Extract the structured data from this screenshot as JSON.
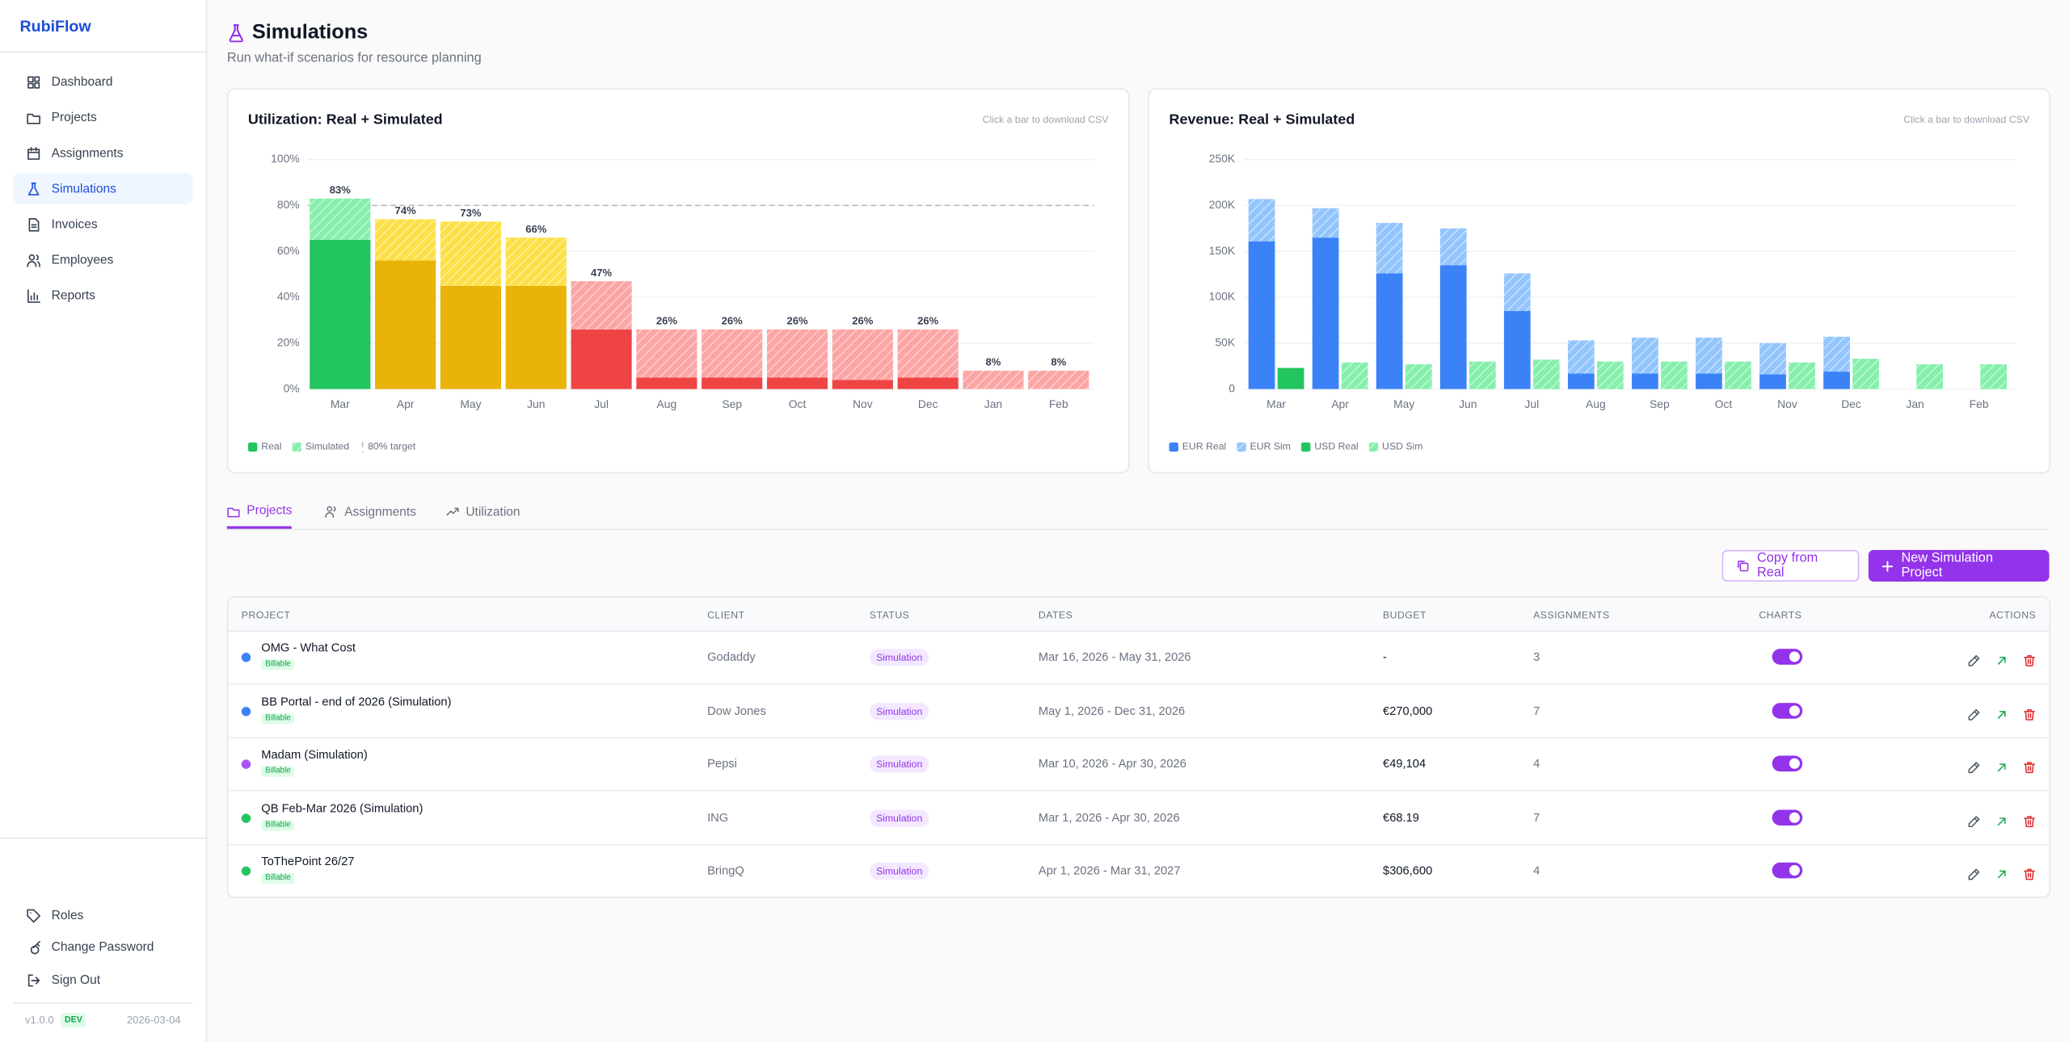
{
  "app": {
    "brand": "RubiFlow"
  },
  "nav": {
    "items": [
      {
        "label": "Dashboard"
      },
      {
        "label": "Projects"
      },
      {
        "label": "Assignments"
      },
      {
        "label": "Simulations",
        "active": true
      },
      {
        "label": "Invoices"
      },
      {
        "label": "Employees"
      },
      {
        "label": "Reports"
      }
    ],
    "bottom_items": [
      {
        "label": "Roles"
      },
      {
        "label": "Change Password"
      },
      {
        "label": "Sign Out"
      }
    ],
    "version": "v1.0.0",
    "env": "DEV",
    "date": "2026-03-04"
  },
  "header": {
    "title": "Simulations",
    "subtitle": "Run what-if scenarios for resource planning"
  },
  "chart_data": [
    {
      "type": "bar",
      "stacked": true,
      "title": "Utilization: Real + Simulated",
      "subtitle": "Click a bar to download CSV",
      "categories": [
        "Mar",
        "Apr",
        "May",
        "Jun",
        "Jul",
        "Aug",
        "Sep",
        "Oct",
        "Nov",
        "Dec",
        "Jan",
        "Feb"
      ],
      "series": [
        {
          "name": "Real",
          "color": "#22c55e",
          "bar_colors": [
            "#22c55e",
            "#eab308",
            "#eab308",
            "#eab308",
            "#ef4444",
            "#ef4444",
            "#ef4444",
            "#ef4444",
            "#ef4444",
            "#ef4444",
            "#ef4444",
            "#ef4444"
          ],
          "values": [
            65,
            56,
            45,
            45,
            26,
            5,
            5,
            5,
            4,
            5,
            0,
            0
          ]
        },
        {
          "name": "Simulated",
          "color": "#86efac",
          "hatched": true,
          "bar_colors": [
            "#86efac",
            "#fde047",
            "#fde047",
            "#fde047",
            "#fca5a5",
            "#fca5a5",
            "#fca5a5",
            "#fca5a5",
            "#fca5a5",
            "#fca5a5",
            "#fca5a5",
            "#fca5a5"
          ],
          "values": [
            18,
            18,
            28,
            21,
            21,
            21,
            21,
            21,
            22,
            21,
            8,
            8
          ]
        }
      ],
      "totals": {
        "values": [
          83,
          74,
          73,
          66,
          47,
          26,
          26,
          26,
          26,
          26,
          8,
          8
        ],
        "value_labels": [
          "83%",
          "74%",
          "73%",
          "66%",
          "47%",
          "26%",
          "26%",
          "26%",
          "26%",
          "26%",
          "8%",
          "8%"
        ]
      },
      "target": {
        "value": 80,
        "label": "80% target"
      },
      "ylim": [
        0,
        100
      ],
      "yticks": [
        {
          "value": 0,
          "label": "0%"
        },
        {
          "value": 20,
          "label": "20%"
        },
        {
          "value": 40,
          "label": "40%"
        },
        {
          "value": 60,
          "label": "60%"
        },
        {
          "value": 80,
          "label": "80%"
        },
        {
          "value": 100,
          "label": "100%"
        }
      ],
      "grid": true
    },
    {
      "type": "bar",
      "stacked": true,
      "title": "Revenue: Real + Simulated",
      "subtitle": "Click a bar to download CSV",
      "categories": [
        "Mar",
        "Apr",
        "May",
        "Jun",
        "Jul",
        "Aug",
        "Sep",
        "Oct",
        "Nov",
        "Dec",
        "Jan",
        "Feb"
      ],
      "series": [
        {
          "name": "EUR Real",
          "color": "#3b82f6",
          "stack": "EUR",
          "values": [
            161000,
            165000,
            126000,
            135000,
            85000,
            17000,
            17000,
            17000,
            16000,
            19000,
            0,
            0
          ]
        },
        {
          "name": "EUR Sim",
          "color": "#93c5fd",
          "stack": "EUR",
          "hatched": true,
          "values": [
            46000,
            32000,
            55000,
            40000,
            41000,
            36000,
            39000,
            39000,
            34000,
            38000,
            0,
            0
          ]
        },
        {
          "name": "USD Real",
          "color": "#22c55e",
          "stack": "USD",
          "values": [
            23000,
            0,
            0,
            0,
            0,
            0,
            0,
            0,
            0,
            0,
            0,
            0
          ]
        },
        {
          "name": "USD Sim",
          "color": "#86efac",
          "stack": "USD",
          "hatched": true,
          "values": [
            0,
            29000,
            27000,
            30000,
            32000,
            30000,
            30000,
            30000,
            29000,
            33000,
            27000,
            27000
          ]
        }
      ],
      "ylim": [
        0,
        250000
      ],
      "yticks": [
        0,
        {
          "value": 50000,
          "label": "50K"
        },
        {
          "value": 100000,
          "label": "100K"
        },
        {
          "value": 150000,
          "label": "150K"
        },
        {
          "value": 200000,
          "label": "200K"
        },
        {
          "value": 250000,
          "label": "250K"
        }
      ],
      "grid": true
    }
  ],
  "tabs": [
    {
      "label": "Projects",
      "active": true
    },
    {
      "label": "Assignments"
    },
    {
      "label": "Utilization"
    }
  ],
  "buttons": {
    "copy": "Copy from Real",
    "new": "New Simulation Project"
  },
  "table": {
    "columns": [
      "PROJECT",
      "CLIENT",
      "STATUS",
      "DATES",
      "BUDGET",
      "ASSIGNMENTS",
      "CHARTS",
      "ACTIONS"
    ],
    "rows": [
      {
        "dot_color": "#3b82f6",
        "name": "OMG - What Cost",
        "tag": "Billable",
        "client": "Godaddy",
        "status": "Simulation",
        "dates": "Mar 16, 2026 - May 31, 2026",
        "budget": "-",
        "assignments": 3,
        "charts_enabled": true
      },
      {
        "dot_color": "#3b82f6",
        "name": "BB Portal - end of 2026 (Simulation)",
        "tag": "Billable",
        "client": "Dow Jones",
        "status": "Simulation",
        "dates": "May 1, 2026 - Dec 31, 2026",
        "budget": "€270,000",
        "assignments": 7,
        "charts_enabled": true
      },
      {
        "dot_color": "#a855f7",
        "name": "Madam (Simulation)",
        "tag": "Billable",
        "client": "Pepsi",
        "status": "Simulation",
        "dates": "Mar 10, 2026 - Apr 30, 2026",
        "budget": "€49,104",
        "assignments": 4,
        "charts_enabled": true
      },
      {
        "dot_color": "#22c55e",
        "name": "QB Feb-Mar 2026 (Simulation)",
        "tag": "Billable",
        "client": "ING",
        "status": "Simulation",
        "dates": "Mar 1, 2026 - Apr 30, 2026",
        "budget": "€68.19",
        "assignments": 7,
        "charts_enabled": true
      },
      {
        "dot_color": "#22c55e",
        "name": "ToThePoint 26/27",
        "tag": "Billable",
        "client": "BringQ",
        "status": "Simulation",
        "dates": "Apr 1, 2026 - Mar 31, 2027",
        "budget": "$306,600",
        "assignments": 4,
        "charts_enabled": true
      }
    ]
  }
}
